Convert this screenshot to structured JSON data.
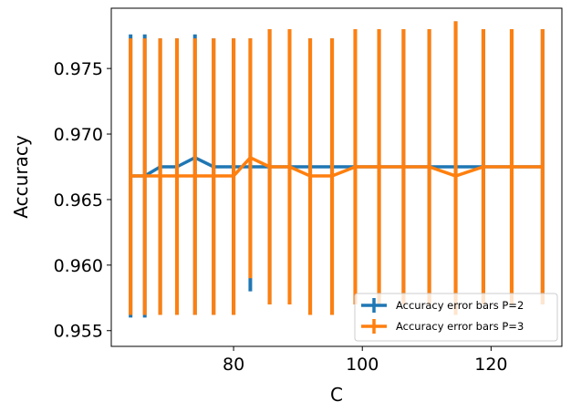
{
  "chart_data": {
    "type": "line",
    "title": "",
    "xlabel": "C",
    "ylabel": "Accuracy",
    "xlim": [
      61,
      131
    ],
    "ylim": [
      0.9538,
      0.9796
    ],
    "x_ticks": [
      80,
      100,
      120
    ],
    "x_tick_labels": [
      "80",
      "100",
      "120"
    ],
    "y_ticks": [
      0.955,
      0.96,
      0.965,
      0.97,
      0.975
    ],
    "y_tick_labels": [
      "0.955",
      "0.960",
      "0.965",
      "0.970",
      "0.975"
    ],
    "grid": false,
    "legend_position": "lower-right",
    "series": [
      {
        "name": "Accuracy error bars P=2",
        "color": "#1f77b4",
        "x": [
          64.0,
          66.2,
          68.6,
          71.2,
          74.0,
          76.9,
          80.0,
          82.6,
          85.6,
          88.7,
          91.9,
          95.3,
          98.9,
          102.6,
          106.4,
          110.4,
          114.5,
          118.8,
          123.2,
          128.0
        ],
        "y": [
          0.9668,
          0.9668,
          0.9675,
          0.9675,
          0.9682,
          0.9675,
          0.9675,
          0.9675,
          0.9675,
          0.9675,
          0.9675,
          0.9675,
          0.9675,
          0.9675,
          0.9675,
          0.9675,
          0.9675,
          0.9675,
          0.9675,
          0.9675
        ],
        "err_low": [
          0.956,
          0.956,
          0.9562,
          0.9562,
          0.9562,
          0.9562,
          0.9562,
          0.958,
          0.957,
          0.957,
          0.9562,
          0.9562,
          0.957,
          0.957,
          0.957,
          0.957,
          0.957,
          0.957,
          0.957,
          0.957
        ],
        "err_high": [
          0.9776,
          0.9776,
          0.9773,
          0.9773,
          0.9776,
          0.9773,
          0.9773,
          0.9773,
          0.978,
          0.978,
          0.9773,
          0.9773,
          0.978,
          0.978,
          0.978,
          0.978,
          0.9786,
          0.978,
          0.978,
          0.978
        ]
      },
      {
        "name": "Accuracy error bars P=3",
        "color": "#ff7f0e",
        "x": [
          64.0,
          66.2,
          68.6,
          71.2,
          74.0,
          76.9,
          80.0,
          82.6,
          85.6,
          88.7,
          91.9,
          95.3,
          98.9,
          102.6,
          106.4,
          110.4,
          114.5,
          118.8,
          123.2,
          128.0
        ],
        "y": [
          0.9668,
          0.9668,
          0.9668,
          0.9668,
          0.9668,
          0.9668,
          0.9668,
          0.9682,
          0.9675,
          0.9675,
          0.9668,
          0.9668,
          0.9675,
          0.9675,
          0.9675,
          0.9675,
          0.9668,
          0.9675,
          0.9675,
          0.9675
        ],
        "err_low": [
          0.9562,
          0.9562,
          0.9562,
          0.9562,
          0.9562,
          0.9562,
          0.9562,
          0.959,
          0.957,
          0.957,
          0.9562,
          0.9562,
          0.957,
          0.957,
          0.957,
          0.957,
          0.9562,
          0.957,
          0.957,
          0.957
        ],
        "err_high": [
          0.9773,
          0.9773,
          0.9773,
          0.9773,
          0.9773,
          0.9773,
          0.9773,
          0.9773,
          0.978,
          0.978,
          0.9773,
          0.9773,
          0.978,
          0.978,
          0.978,
          0.978,
          0.9786,
          0.978,
          0.978,
          0.978
        ]
      }
    ]
  }
}
